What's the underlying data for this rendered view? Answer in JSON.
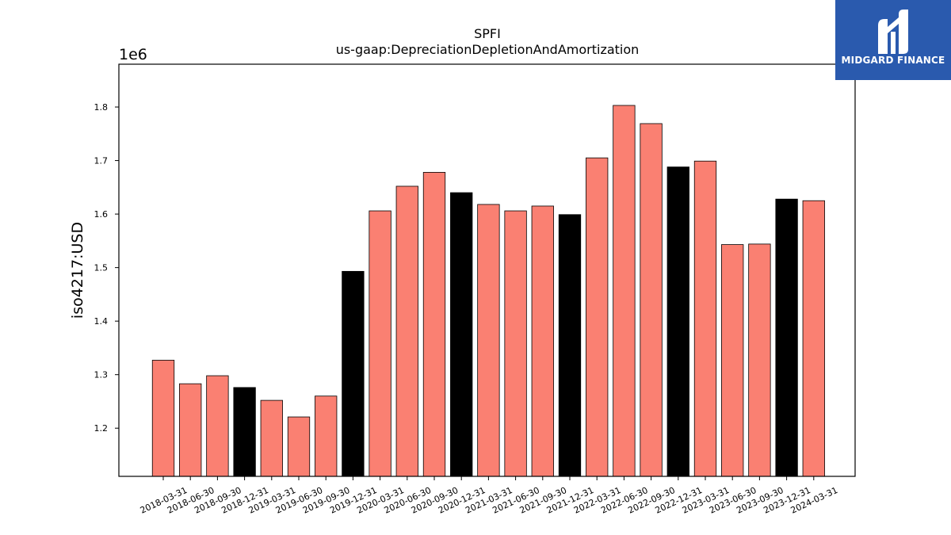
{
  "chart_data": {
    "type": "bar",
    "title": "SPFI",
    "subtitle": "us-gaap:DepreciationDepletionAndAmortization",
    "ylabel": "iso4217:USD",
    "y_offset_label": "1e6",
    "ylim": [
      1.11,
      1.88
    ],
    "yticks": [
      "1.2",
      "1.3",
      "1.4",
      "1.5",
      "1.6",
      "1.7",
      "1.8"
    ],
    "ytick_values": [
      1.2,
      1.3,
      1.4,
      1.5,
      1.6,
      1.7,
      1.8
    ],
    "grid": false,
    "colors": {
      "normal": "#fa8072",
      "q4": "#000000",
      "edge": "#000000"
    },
    "categories": [
      "2018-03-31",
      "2018-06-30",
      "2018-09-30",
      "2018-12-31",
      "2019-03-31",
      "2019-06-30",
      "2019-09-30",
      "2019-12-31",
      "2020-03-31",
      "2020-06-30",
      "2020-09-30",
      "2020-12-31",
      "2021-03-31",
      "2021-06-30",
      "2021-09-30",
      "2021-12-31",
      "2022-03-31",
      "2022-06-30",
      "2022-09-30",
      "2022-12-31",
      "2023-03-31",
      "2023-06-30",
      "2023-09-30",
      "2023-12-31",
      "2024-03-31"
    ],
    "values": [
      1.327,
      1.283,
      1.298,
      1.276,
      1.252,
      1.221,
      1.26,
      1.493,
      1.606,
      1.652,
      1.678,
      1.64,
      1.618,
      1.606,
      1.615,
      1.599,
      1.705,
      1.803,
      1.769,
      1.688,
      1.699,
      1.543,
      1.544,
      1.628,
      1.625
    ]
  },
  "logo": {
    "text": "MIDGARD FINANCE"
  }
}
